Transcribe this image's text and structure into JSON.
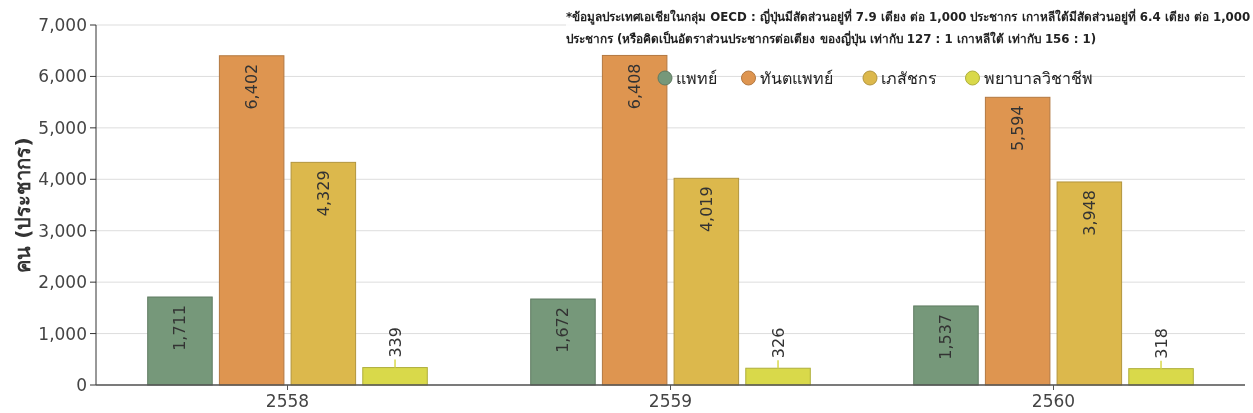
{
  "chart_data": {
    "type": "bar",
    "ylabel": "คน (ประชากร)",
    "categories": [
      "2558",
      "2559",
      "2560"
    ],
    "series": [
      {
        "name": "แพทย์",
        "color": "#76987a",
        "values": [
          1711,
          1672,
          1537
        ],
        "value_labels": [
          "1,711",
          "1,672",
          "1,537"
        ]
      },
      {
        "name": "ทันตแพทย์",
        "color": "#de9550",
        "values": [
          6402,
          6408,
          5594
        ],
        "value_labels": [
          "6,402",
          "6,408",
          "5,594"
        ]
      },
      {
        "name": "เภสัชกร",
        "color": "#dcb84c",
        "values": [
          4329,
          4019,
          3948
        ],
        "value_labels": [
          "4,329",
          "4,019",
          "3,948"
        ]
      },
      {
        "name": "พยาบาลวิชาชีพ",
        "color": "#d9d94a",
        "values": [
          339,
          326,
          318
        ],
        "value_labels": [
          "339",
          "326",
          "318"
        ]
      }
    ],
    "ylim": [
      0,
      7000
    ],
    "yticks": [
      {
        "value": 0,
        "label": "0"
      },
      {
        "value": 1000,
        "label": "1,000"
      },
      {
        "value": 2000,
        "label": "2,000"
      },
      {
        "value": 3000,
        "label": "3,000"
      },
      {
        "value": 4000,
        "label": "4,000"
      },
      {
        "value": 5000,
        "label": "5,000"
      },
      {
        "value": 6000,
        "label": "6,000"
      },
      {
        "value": 7000,
        "label": "7,000"
      }
    ],
    "grid": "y",
    "legend": "top right",
    "annotations": [
      "*ข้อมูลประเทศเอเชียในกลุ่ม OECD : ญี่ปุ่นมีสัดส่วนอยู่ที่ 7.9 เตียง ต่อ 1,000 ประชากร เกาหลีใต้มีสัดส่วนอยู่ที่ 6.4 เตียง ต่อ 1,000 ประชากร (หรือคิดเป็นอัตราส่วนประชากรต่อเตียง ของญี่ปุ่น เท่ากับ 127 : 1 เกาหลีใต้ เท่ากับ 156 : 1)"
    ]
  }
}
